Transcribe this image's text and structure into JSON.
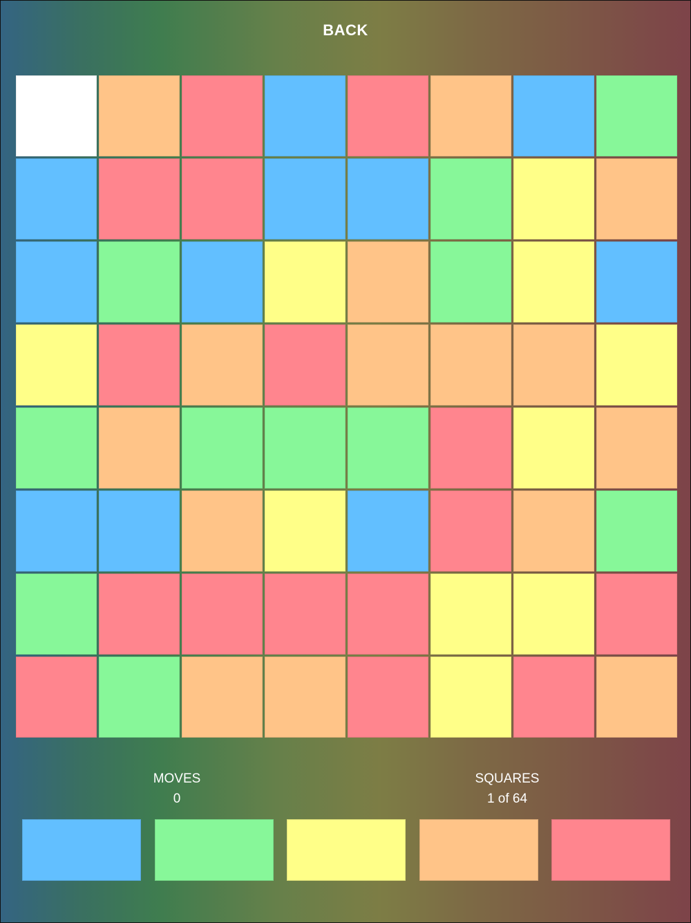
{
  "header": {
    "back_label": "BACK"
  },
  "colors": {
    "B": "#62bfff",
    "G": "#87f799",
    "Y": "#ffff88",
    "O": "#ffc488",
    "R": "#ff858e",
    "W": "#ffffff"
  },
  "board": [
    [
      "W",
      "O",
      "R",
      "B",
      "R",
      "O",
      "B",
      "G"
    ],
    [
      "B",
      "R",
      "R",
      "B",
      "B",
      "G",
      "Y",
      "O"
    ],
    [
      "B",
      "G",
      "B",
      "Y",
      "O",
      "G",
      "Y",
      "B"
    ],
    [
      "Y",
      "R",
      "O",
      "R",
      "O",
      "O",
      "O",
      "Y"
    ],
    [
      "G",
      "O",
      "G",
      "G",
      "G",
      "R",
      "Y",
      "O"
    ],
    [
      "B",
      "B",
      "O",
      "Y",
      "B",
      "R",
      "O",
      "G"
    ],
    [
      "G",
      "R",
      "R",
      "R",
      "R",
      "Y",
      "Y",
      "R"
    ],
    [
      "R",
      "G",
      "O",
      "O",
      "R",
      "Y",
      "R",
      "O"
    ]
  ],
  "stats": {
    "moves_label": "MOVES",
    "moves_value": "0",
    "squares_label": "SQUARES",
    "squares_value": "1 of 64"
  },
  "palette": [
    "B",
    "G",
    "Y",
    "O",
    "R"
  ]
}
